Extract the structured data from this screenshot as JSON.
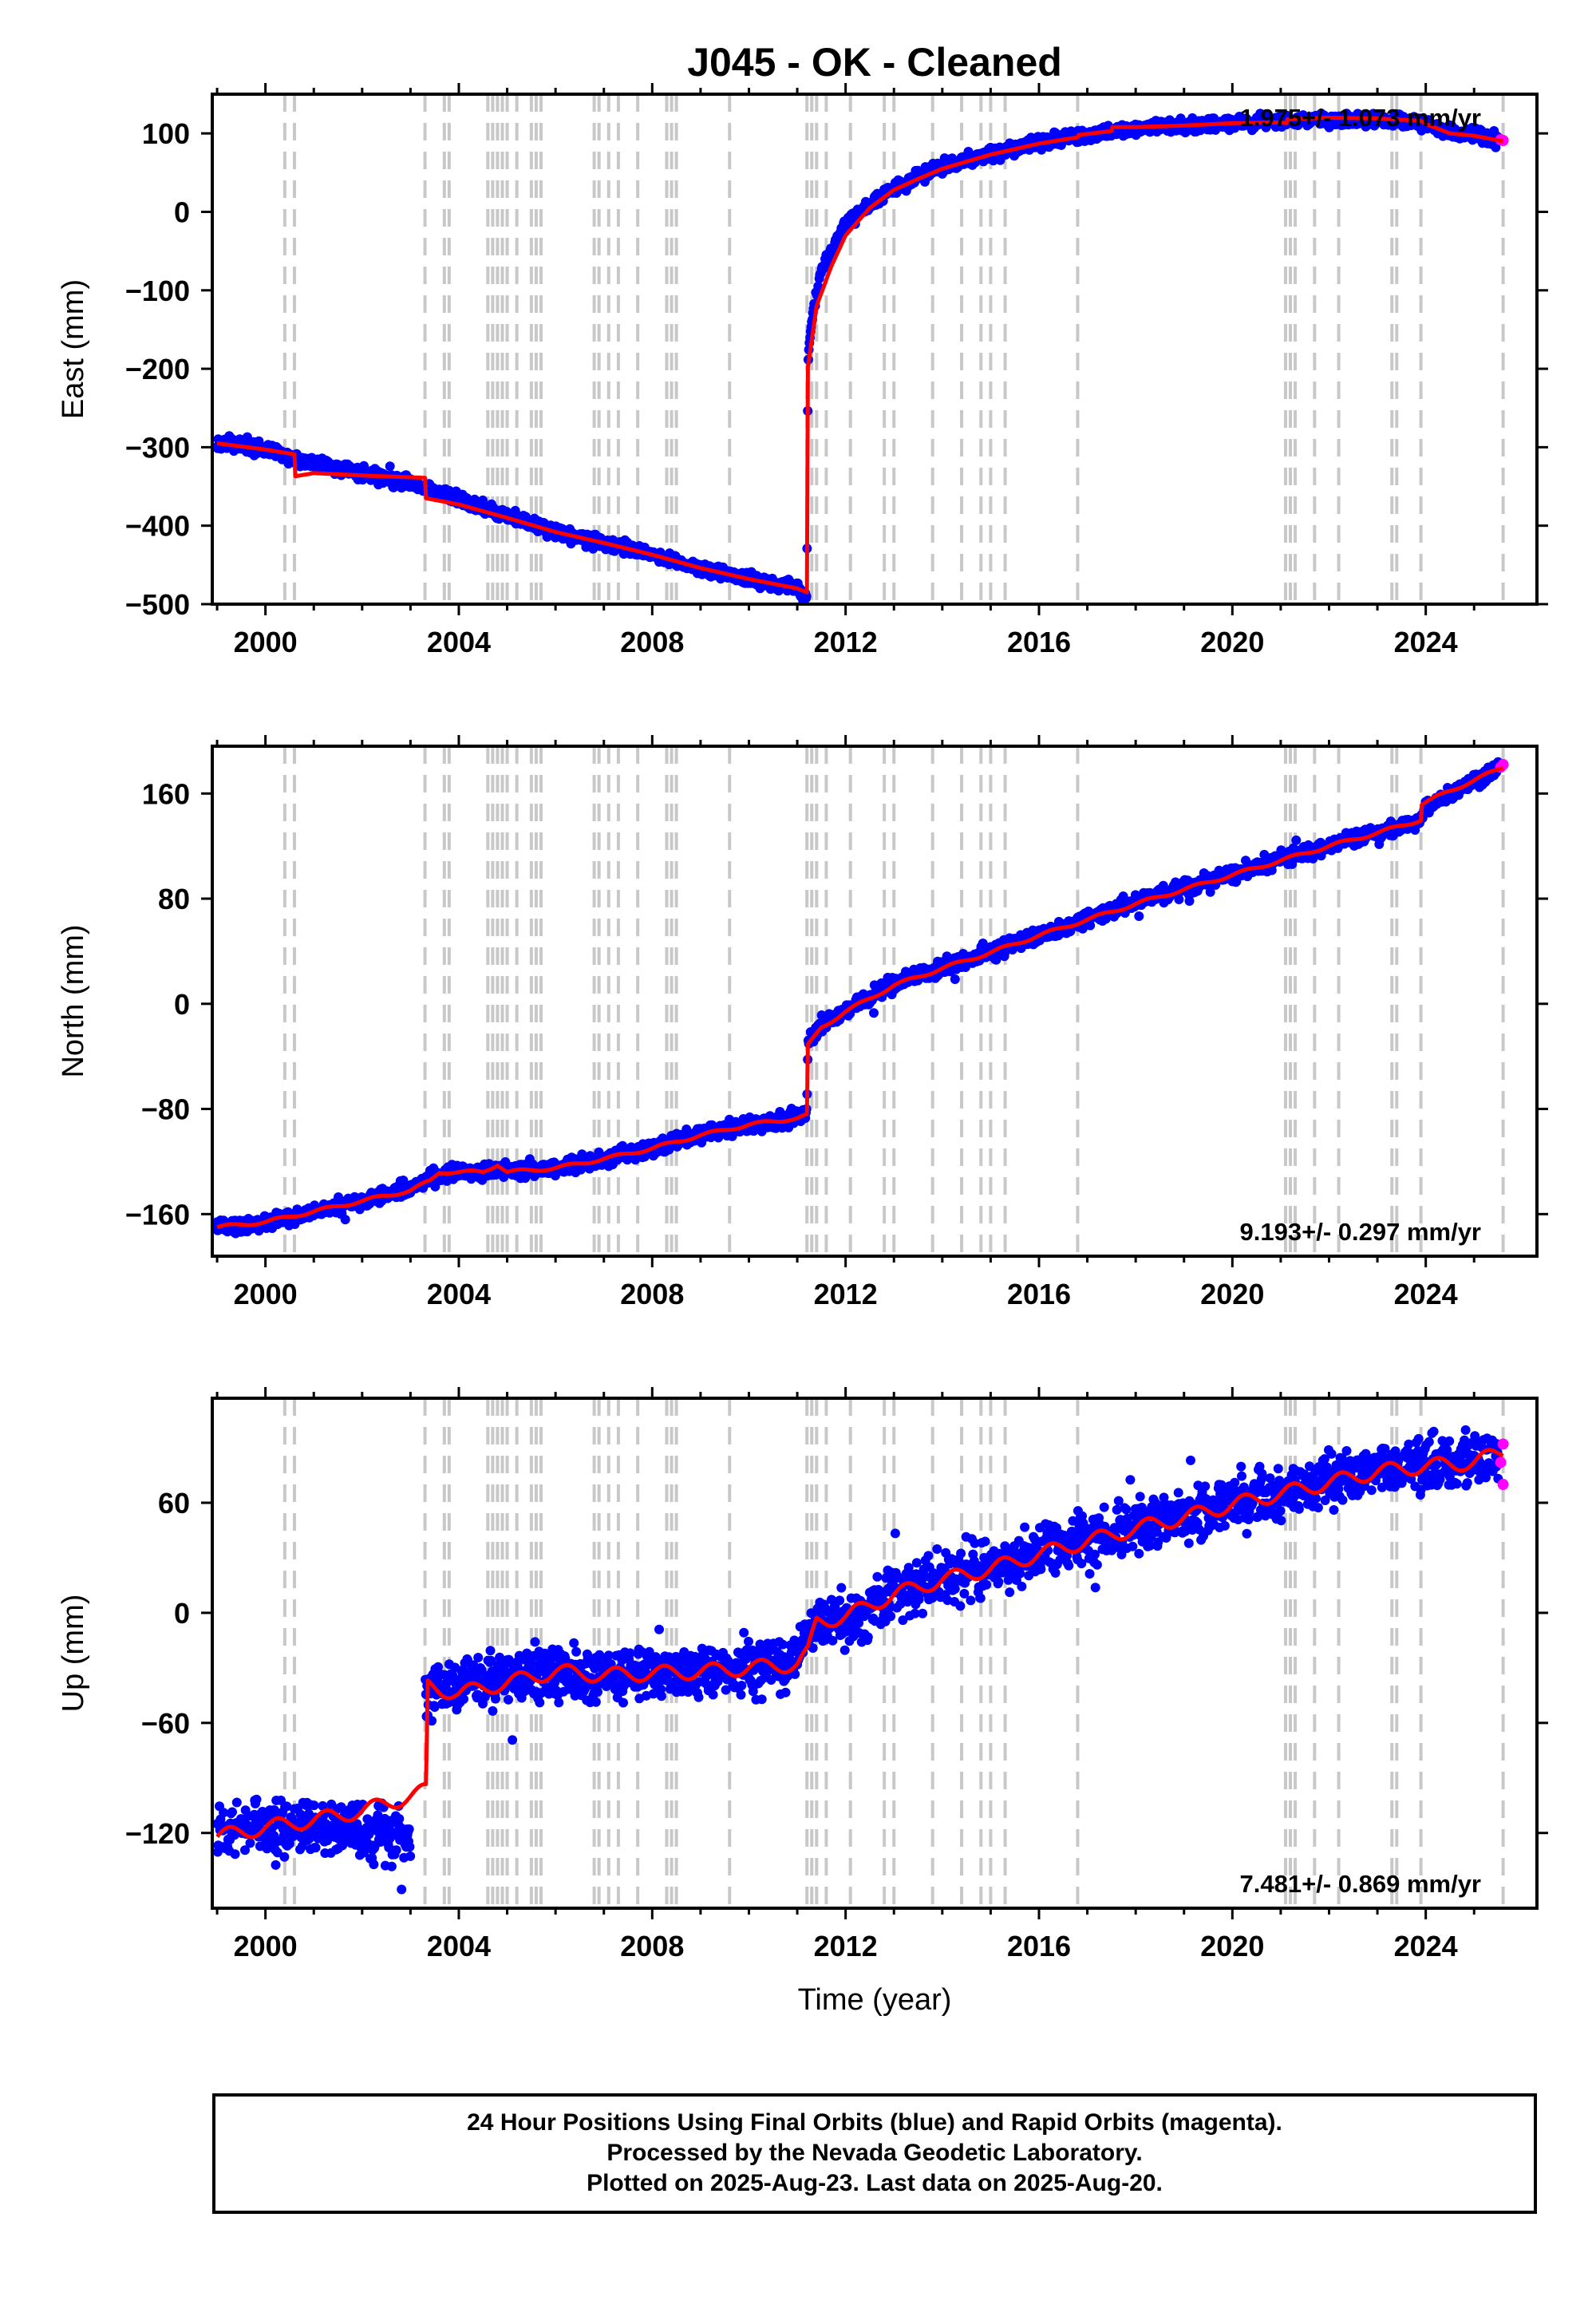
{
  "title": "J045  - OK - Cleaned",
  "xlabel": "Time (year)",
  "x_ticks": [
    "2000",
    "2004",
    "2008",
    "2012",
    "2016",
    "2020",
    "2024"
  ],
  "colors": {
    "final_orbits": "#0000ff",
    "rapid_orbits": "#ff00ff",
    "model": "#ff0000",
    "event_lines": "#c8c8c8"
  },
  "caption": {
    "line1": "24 Hour Positions Using Final Orbits (blue) and Rapid Orbits (magenta).",
    "line2": "Processed by the Nevada Geodetic Laboratory.",
    "line3": "Plotted on 2025-Aug-23. Last data on 2025-Aug-20."
  },
  "chart_data": [
    {
      "type": "scatter",
      "component": "East",
      "ylabel": "East (mm)",
      "rate_text": "1.975+/- 1.073 mm/yr",
      "rate_position": "top-right",
      "xlim": [
        1998.9,
        2026.3
      ],
      "ylim": [
        -500,
        150
      ],
      "y_ticks": [
        "100",
        "0",
        "−100",
        "−200",
        "−300",
        "−400",
        "−500"
      ],
      "y_tick_values": [
        100,
        0,
        -100,
        -200,
        -300,
        -400,
        -500
      ],
      "event_lines": [
        2000.4,
        2000.6,
        2003.3,
        2003.7,
        2003.8,
        2004.6,
        2004.7,
        2004.8,
        2004.9,
        2005.0,
        2005.2,
        2005.5,
        2005.6,
        2005.7,
        2006.8,
        2006.9,
        2007.1,
        2007.3,
        2007.7,
        2008.3,
        2008.4,
        2008.5,
        2009.6,
        2011.2,
        2011.3,
        2011.4,
        2011.6,
        2012.1,
        2012.8,
        2013.0,
        2013.8,
        2014.4,
        2014.8,
        2015.0,
        2015.3,
        2016.8,
        2021.1,
        2021.2,
        2021.3,
        2021.7,
        2022.2,
        2023.3,
        2023.4,
        2023.9,
        2025.6
      ],
      "final_orbits": [
        [
          1999.0,
          -292
        ],
        [
          2000.0,
          -305
        ],
        [
          2001.0,
          -320
        ],
        [
          2002.0,
          -333
        ],
        [
          2003.0,
          -346
        ],
        [
          2004.0,
          -366
        ],
        [
          2005.0,
          -388
        ],
        [
          2006.0,
          -407
        ],
        [
          2007.0,
          -422
        ],
        [
          2008.0,
          -437
        ],
        [
          2009.0,
          -453
        ],
        [
          2010.0,
          -468
        ],
        [
          2011.0,
          -480
        ],
        [
          2011.2,
          -488
        ],
        [
          2011.22,
          -195
        ],
        [
          2011.3,
          -135
        ],
        [
          2011.5,
          -75
        ],
        [
          2012.0,
          -15
        ],
        [
          2012.5,
          10
        ],
        [
          2013.0,
          30
        ],
        [
          2013.5,
          45
        ],
        [
          2014.0,
          58
        ],
        [
          2015.0,
          74
        ],
        [
          2016.0,
          88
        ],
        [
          2017.0,
          98
        ],
        [
          2018.0,
          105
        ],
        [
          2019.0,
          110
        ],
        [
          2020.0,
          113
        ],
        [
          2021.0,
          116
        ],
        [
          2022.0,
          118
        ],
        [
          2023.0,
          118
        ],
        [
          2024.0,
          112
        ],
        [
          2024.5,
          100
        ],
        [
          2025.0,
          97
        ],
        [
          2025.5,
          92
        ]
      ],
      "rapid_orbits": [
        [
          2025.55,
          92
        ],
        [
          2025.6,
          91
        ]
      ],
      "model": [
        [
          1999.0,
          -295
        ],
        [
          2000.0,
          -303
        ],
        [
          2000.6,
          -309
        ],
        [
          2000.62,
          -337
        ],
        [
          2001.0,
          -333
        ],
        [
          2002.0,
          -336
        ],
        [
          2003.3,
          -339
        ],
        [
          2003.32,
          -365
        ],
        [
          2004.0,
          -373
        ],
        [
          2005.0,
          -390
        ],
        [
          2006.0,
          -408
        ],
        [
          2007.0,
          -422
        ],
        [
          2008.0,
          -437
        ],
        [
          2009.0,
          -454
        ],
        [
          2010.0,
          -468
        ],
        [
          2011.0,
          -480
        ],
        [
          2011.2,
          -485
        ],
        [
          2011.22,
          -198
        ],
        [
          2011.4,
          -120
        ],
        [
          2011.7,
          -70
        ],
        [
          2012.0,
          -30
        ],
        [
          2012.5,
          5
        ],
        [
          2013.0,
          28
        ],
        [
          2013.5,
          42
        ],
        [
          2014.0,
          55
        ],
        [
          2015.0,
          73
        ],
        [
          2016.0,
          87
        ],
        [
          2016.8,
          95
        ],
        [
          2016.82,
          98
        ],
        [
          2017.5,
          103
        ],
        [
          2017.52,
          108
        ],
        [
          2018.0,
          108
        ],
        [
          2019.0,
          110
        ],
        [
          2020.0,
          113
        ],
        [
          2021.0,
          114
        ],
        [
          2021.12,
          113
        ],
        [
          2021.14,
          118
        ],
        [
          2022.0,
          120
        ],
        [
          2023.0,
          119
        ],
        [
          2023.9,
          116
        ],
        [
          2024.0,
          112
        ],
        [
          2024.5,
          100
        ],
        [
          2025.0,
          97
        ],
        [
          2025.6,
          90
        ]
      ]
    },
    {
      "type": "scatter",
      "component": "North",
      "ylabel": "North (mm)",
      "rate_text": "9.193+/- 0.297 mm/yr",
      "rate_position": "bottom-right",
      "xlim": [
        1998.9,
        2026.3
      ],
      "ylim": [
        -192,
        196
      ],
      "y_ticks": [
        "160",
        "80",
        "0",
        "−80",
        "−160"
      ],
      "y_tick_values": [
        160,
        80,
        0,
        -80,
        -160
      ],
      "event_lines": [
        2000.4,
        2000.6,
        2003.3,
        2003.7,
        2003.8,
        2004.6,
        2004.7,
        2004.8,
        2004.9,
        2005.0,
        2005.2,
        2005.5,
        2005.6,
        2005.7,
        2006.8,
        2006.9,
        2007.1,
        2007.3,
        2007.7,
        2008.3,
        2008.4,
        2008.5,
        2009.6,
        2011.2,
        2011.3,
        2011.4,
        2011.6,
        2012.1,
        2012.8,
        2013.0,
        2013.8,
        2014.4,
        2014.8,
        2015.0,
        2015.3,
        2016.8,
        2021.1,
        2021.2,
        2021.3,
        2021.7,
        2022.2,
        2023.3,
        2023.4,
        2023.9,
        2025.6
      ],
      "final_orbits": [
        [
          1999.0,
          -170
        ],
        [
          2000.0,
          -167
        ],
        [
          2001.0,
          -158
        ],
        [
          2002.0,
          -150
        ],
        [
          2003.0,
          -140
        ],
        [
          2003.4,
          -132
        ],
        [
          2004.0,
          -128
        ],
        [
          2005.0,
          -127
        ],
        [
          2006.0,
          -125
        ],
        [
          2007.0,
          -118
        ],
        [
          2008.0,
          -110
        ],
        [
          2009.0,
          -100
        ],
        [
          2010.0,
          -92
        ],
        [
          2011.0,
          -86
        ],
        [
          2011.2,
          -85
        ],
        [
          2011.22,
          -30
        ],
        [
          2011.5,
          -15
        ],
        [
          2012.0,
          -5
        ],
        [
          2013.0,
          15
        ],
        [
          2014.0,
          28
        ],
        [
          2015.0,
          40
        ],
        [
          2016.0,
          52
        ],
        [
          2017.0,
          65
        ],
        [
          2018.0,
          77
        ],
        [
          2019.0,
          88
        ],
        [
          2020.0,
          98
        ],
        [
          2021.0,
          110
        ],
        [
          2022.0,
          120
        ],
        [
          2023.0,
          130
        ],
        [
          2023.9,
          140
        ],
        [
          2024.0,
          150
        ],
        [
          2025.0,
          170
        ],
        [
          2025.5,
          179
        ]
      ],
      "rapid_orbits": [
        [
          2025.55,
          180
        ],
        [
          2025.6,
          182
        ]
      ],
      "model": [
        [
          1999.0,
          -170
        ],
        [
          2000.0,
          -166
        ],
        [
          2001.0,
          -158
        ],
        [
          2002.0,
          -150
        ],
        [
          2003.0,
          -142
        ],
        [
          2003.4,
          -135
        ],
        [
          2003.6,
          -128
        ],
        [
          2004.5,
          -128
        ],
        [
          2004.8,
          -122
        ],
        [
          2005.0,
          -128
        ],
        [
          2006.0,
          -125
        ],
        [
          2007.0,
          -118
        ],
        [
          2008.0,
          -110
        ],
        [
          2009.0,
          -100
        ],
        [
          2010.0,
          -92
        ],
        [
          2011.0,
          -87
        ],
        [
          2011.2,
          -85
        ],
        [
          2011.22,
          -32
        ],
        [
          2011.5,
          -18
        ],
        [
          2012.0,
          -6
        ],
        [
          2013.0,
          14
        ],
        [
          2014.0,
          27
        ],
        [
          2015.0,
          39
        ],
        [
          2016.0,
          52
        ],
        [
          2017.0,
          64
        ],
        [
          2018.0,
          76
        ],
        [
          2019.0,
          87
        ],
        [
          2020.0,
          98
        ],
        [
          2021.0,
          109
        ],
        [
          2022.0,
          120
        ],
        [
          2023.0,
          130
        ],
        [
          2023.9,
          140
        ],
        [
          2023.92,
          152
        ],
        [
          2024.5,
          162
        ],
        [
          2025.0,
          170
        ],
        [
          2025.6,
          180
        ]
      ]
    },
    {
      "type": "scatter",
      "component": "Up",
      "ylabel": "Up (mm)",
      "rate_text": "7.481+/- 0.869 mm/yr",
      "rate_position": "bottom-right",
      "xlim": [
        1998.9,
        2026.3
      ],
      "ylim": [
        -161,
        117
      ],
      "y_ticks": [
        "60",
        "0",
        "−60",
        "−120"
      ],
      "y_tick_values": [
        60,
        0,
        -60,
        -120
      ],
      "event_lines": [
        2000.4,
        2000.6,
        2003.3,
        2003.7,
        2003.8,
        2004.6,
        2004.7,
        2004.8,
        2004.9,
        2005.0,
        2005.2,
        2005.5,
        2005.6,
        2005.7,
        2006.8,
        2006.9,
        2007.1,
        2007.3,
        2007.7,
        2008.3,
        2008.4,
        2008.5,
        2009.6,
        2011.2,
        2011.3,
        2011.4,
        2011.6,
        2012.1,
        2012.8,
        2013.0,
        2013.8,
        2014.4,
        2014.8,
        2015.0,
        2015.3,
        2016.8,
        2021.1,
        2021.2,
        2021.3,
        2021.7,
        2022.2,
        2023.3,
        2023.4,
        2023.9,
        2025.6
      ],
      "final_orbits": [
        [
          1999.0,
          -120
        ],
        [
          2000.0,
          -118
        ],
        [
          2001.0,
          -118
        ],
        [
          2002.0,
          -120
        ],
        [
          2003.0,
          -122
        ],
        [
          2003.3,
          -40
        ],
        [
          2004.0,
          -38
        ],
        [
          2005.0,
          -35
        ],
        [
          2006.0,
          -32
        ],
        [
          2007.0,
          -32
        ],
        [
          2008.0,
          -33
        ],
        [
          2009.0,
          -32
        ],
        [
          2010.0,
          -30
        ],
        [
          2011.0,
          -28
        ],
        [
          2011.3,
          -5
        ],
        [
          2012.0,
          -3
        ],
        [
          2013.0,
          10
        ],
        [
          2014.0,
          18
        ],
        [
          2015.0,
          25
        ],
        [
          2016.0,
          33
        ],
        [
          2017.0,
          40
        ],
        [
          2018.0,
          47
        ],
        [
          2019.0,
          53
        ],
        [
          2020.0,
          60
        ],
        [
          2021.0,
          65
        ],
        [
          2022.0,
          72
        ],
        [
          2023.0,
          78
        ],
        [
          2024.0,
          80
        ],
        [
          2025.0,
          82
        ],
        [
          2025.5,
          85
        ]
      ],
      "rapid_orbits": [
        [
          2025.55,
          82
        ],
        [
          2025.6,
          92
        ],
        [
          2025.6,
          70
        ]
      ],
      "model": [
        [
          1999.0,
          -122
        ],
        [
          2000.0,
          -117
        ],
        [
          2001.0,
          -113
        ],
        [
          2002.0,
          -108
        ],
        [
          2003.0,
          -100
        ],
        [
          2003.32,
          -97
        ],
        [
          2003.36,
          -40
        ],
        [
          2004.0,
          -44
        ],
        [
          2005.0,
          -38
        ],
        [
          2006.0,
          -32
        ],
        [
          2007.0,
          -34
        ],
        [
          2008.0,
          -33
        ],
        [
          2009.0,
          -32
        ],
        [
          2010.0,
          -30
        ],
        [
          2011.0,
          -28
        ],
        [
          2011.22,
          -22
        ],
        [
          2011.4,
          -5
        ],
        [
          2012.0,
          -2
        ],
        [
          2013.0,
          10
        ],
        [
          2014.0,
          18
        ],
        [
          2015.0,
          24
        ],
        [
          2016.0,
          32
        ],
        [
          2017.0,
          39
        ],
        [
          2018.0,
          46
        ],
        [
          2019.0,
          52
        ],
        [
          2020.0,
          59
        ],
        [
          2021.0,
          65
        ],
        [
          2022.0,
          71
        ],
        [
          2023.0,
          77
        ],
        [
          2024.0,
          80
        ],
        [
          2025.0,
          82
        ],
        [
          2025.6,
          88
        ]
      ]
    }
  ]
}
